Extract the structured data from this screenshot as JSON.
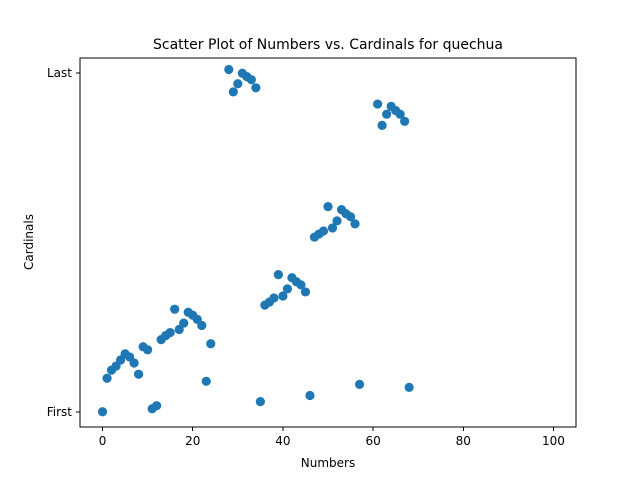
{
  "chart_data": {
    "type": "scatter",
    "title": "Scatter Plot of Numbers vs. Cardinals for quechua",
    "xlabel": "Numbers",
    "ylabel": "Cardinals",
    "xlim": [
      -5,
      105
    ],
    "ylim": [
      -0.045,
      1.045
    ],
    "xticks": [
      0,
      20,
      40,
      60,
      80,
      100
    ],
    "yticks": [
      {
        "value": 0,
        "label": "First"
      },
      {
        "value": 1,
        "label": "Last"
      }
    ],
    "grid": false,
    "color": "#1f77b4",
    "points": [
      [
        0,
        0.0
      ],
      [
        1,
        0.099
      ],
      [
        2,
        0.123
      ],
      [
        3,
        0.135
      ],
      [
        4,
        0.153
      ],
      [
        5,
        0.171
      ],
      [
        6,
        0.162
      ],
      [
        7,
        0.144
      ],
      [
        8,
        0.111
      ],
      [
        9,
        0.192
      ],
      [
        10,
        0.183
      ],
      [
        11,
        0.009
      ],
      [
        12,
        0.018
      ],
      [
        13,
        0.213
      ],
      [
        14,
        0.225
      ],
      [
        15,
        0.234
      ],
      [
        16,
        0.303
      ],
      [
        17,
        0.243
      ],
      [
        18,
        0.262
      ],
      [
        19,
        0.294
      ],
      [
        20,
        0.285
      ],
      [
        21,
        0.273
      ],
      [
        22,
        0.255
      ],
      [
        23,
        0.09
      ],
      [
        24,
        0.201
      ],
      [
        28,
        1.011
      ],
      [
        29,
        0.945
      ],
      [
        30,
        0.969
      ],
      [
        31,
        1.0
      ],
      [
        32,
        0.99
      ],
      [
        33,
        0.981
      ],
      [
        34,
        0.957
      ],
      [
        35,
        0.03
      ],
      [
        36,
        0.315
      ],
      [
        37,
        0.324
      ],
      [
        38,
        0.336
      ],
      [
        39,
        0.405
      ],
      [
        40,
        0.342
      ],
      [
        41,
        0.363
      ],
      [
        42,
        0.396
      ],
      [
        43,
        0.384
      ],
      [
        44,
        0.375
      ],
      [
        45,
        0.354
      ],
      [
        46,
        0.048
      ],
      [
        47,
        0.516
      ],
      [
        48,
        0.525
      ],
      [
        49,
        0.534
      ],
      [
        50,
        0.606
      ],
      [
        51,
        0.543
      ],
      [
        52,
        0.564
      ],
      [
        53,
        0.597
      ],
      [
        54,
        0.585
      ],
      [
        55,
        0.576
      ],
      [
        56,
        0.555
      ],
      [
        57,
        0.081
      ],
      [
        61,
        0.909
      ],
      [
        62,
        0.846
      ],
      [
        63,
        0.879
      ],
      [
        64,
        0.902
      ],
      [
        65,
        0.89
      ],
      [
        66,
        0.879
      ],
      [
        67,
        0.858
      ],
      [
        68,
        0.072
      ]
    ]
  }
}
